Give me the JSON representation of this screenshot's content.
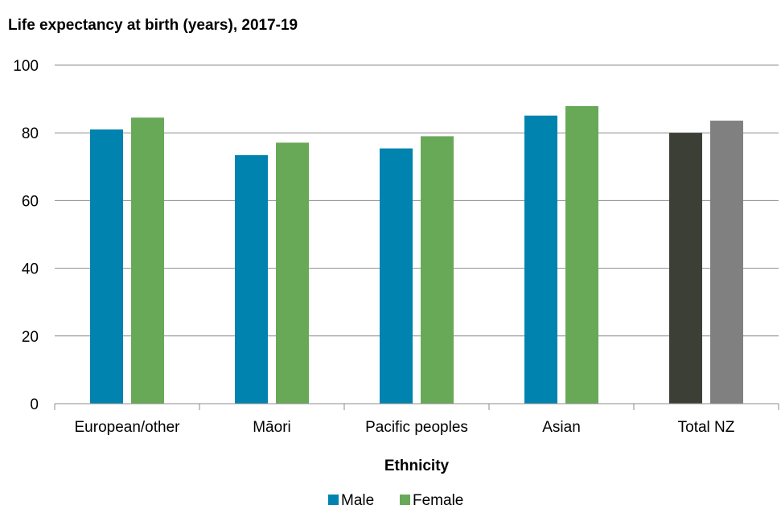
{
  "chart_data": {
    "type": "bar",
    "title": "Life expectancy at birth (years), 2017-19",
    "xlabel": "Ethnicity",
    "ylabel": "",
    "ylim": [
      0,
      100
    ],
    "yticks": [
      0,
      20,
      40,
      60,
      80,
      100
    ],
    "categories": [
      "European/other",
      "Māori",
      "Pacific peoples",
      "Asian",
      "Total NZ"
    ],
    "series": [
      {
        "name": "Male",
        "values": [
          81.0,
          73.4,
          75.4,
          85.1,
          80.0
        ],
        "color": "#0083ae"
      },
      {
        "name": "Female",
        "values": [
          84.5,
          77.1,
          79.0,
          87.9,
          83.6
        ],
        "color": "#68a958"
      }
    ],
    "total_overrides": {
      "category": "Total NZ",
      "male_color": "#3c3f36",
      "female_color": "#808080"
    },
    "legend": {
      "position": "bottom",
      "entries": [
        "Male",
        "Female"
      ]
    },
    "grid": true
  }
}
